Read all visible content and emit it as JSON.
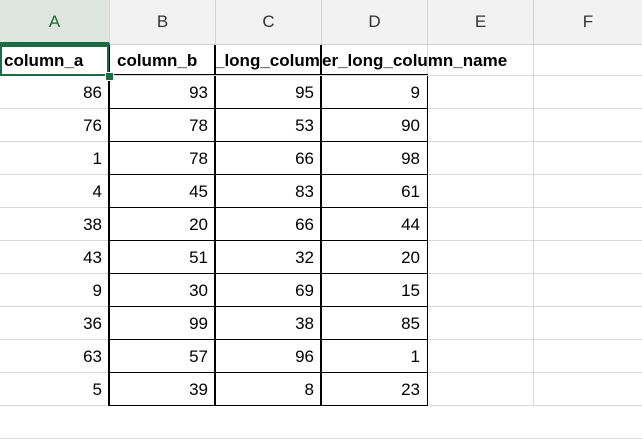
{
  "columns": [
    "A",
    "B",
    "C",
    "D",
    "E",
    "F"
  ],
  "header_row": {
    "col_a": "column_a",
    "col_b": "column_b",
    "col_c": "_long_colum",
    "col_d": "er_long_column_name"
  },
  "rows": [
    [
      "86",
      "93",
      "95",
      "9"
    ],
    [
      "76",
      "78",
      "53",
      "90"
    ],
    [
      "1",
      "78",
      "66",
      "98"
    ],
    [
      "4",
      "45",
      "83",
      "61"
    ],
    [
      "38",
      "20",
      "66",
      "44"
    ],
    [
      "43",
      "51",
      "32",
      "20"
    ],
    [
      "9",
      "30",
      "69",
      "15"
    ],
    [
      "36",
      "99",
      "38",
      "85"
    ],
    [
      "63",
      "57",
      "96",
      "1"
    ],
    [
      "5",
      "39",
      "8",
      "23"
    ]
  ],
  "accent_color": "#1d6b40"
}
